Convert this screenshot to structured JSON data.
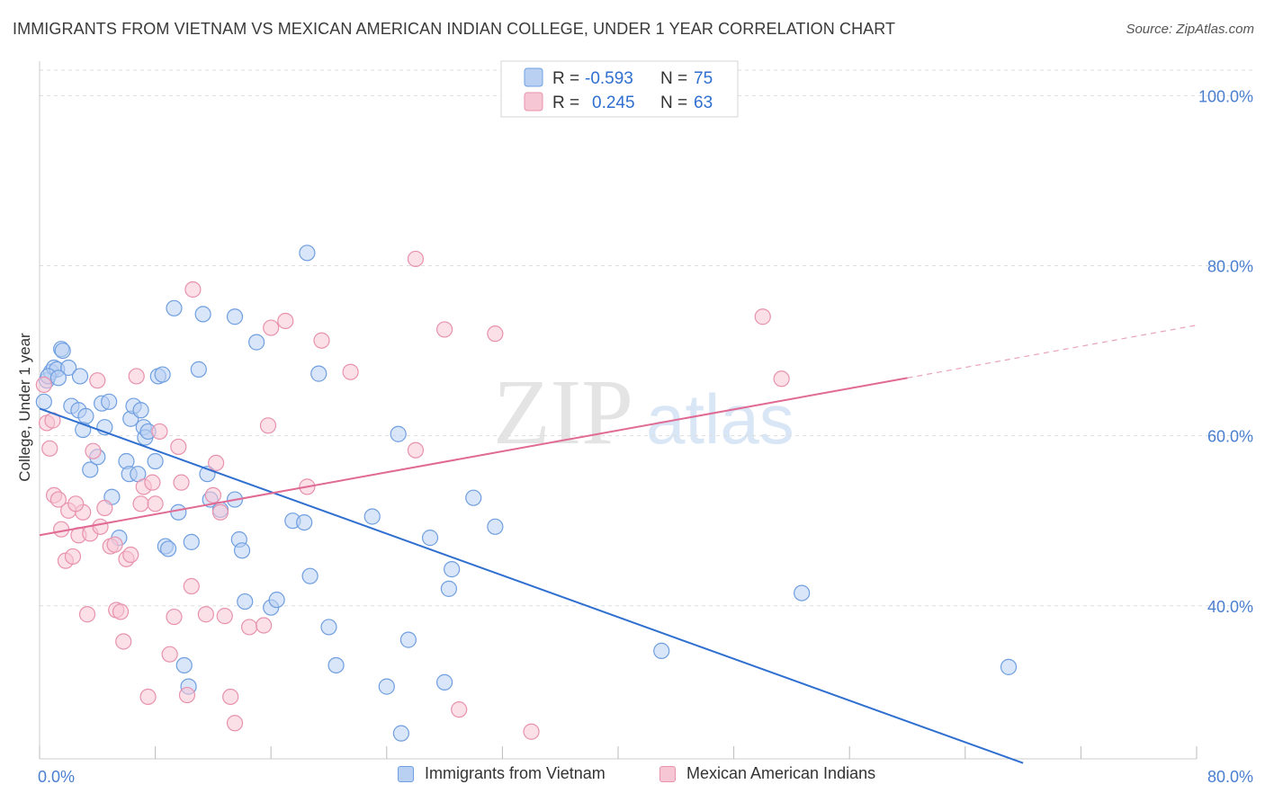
{
  "header": {
    "title": "IMMIGRANTS FROM VIETNAM VS MEXICAN AMERICAN INDIAN COLLEGE, UNDER 1 YEAR CORRELATION CHART",
    "source": "Source: ZipAtlas.com"
  },
  "watermark": {
    "zip": "ZIP",
    "atlas": "atlas"
  },
  "chart_data": {
    "type": "scatter",
    "title": "IMMIGRANTS FROM VIETNAM VS MEXICAN AMERICAN INDIAN COLLEGE, UNDER 1 YEAR CORRELATION CHART",
    "xlabel": "",
    "ylabel": "College, Under 1 year",
    "xlim": [
      0,
      80
    ],
    "ylim": [
      22,
      103
    ],
    "x_tick_labels": [
      "0.0%",
      "80.0%"
    ],
    "y_ticks": [
      40,
      60,
      80,
      100
    ],
    "y_tick_labels": [
      "40.0%",
      "60.0%",
      "80.0%",
      "100.0%"
    ],
    "grid": true,
    "legend_position": "top-center",
    "legend": [
      {
        "r_label": "R =",
        "r_value": "-0.593",
        "n_label": "N =",
        "n_value": "75"
      },
      {
        "r_label": "R =",
        "r_value": "0.245",
        "n_label": "N =",
        "n_value": "63"
      }
    ],
    "series": [
      {
        "name": "Immigrants from Vietnam",
        "color": "#6f9fe0",
        "fill": "#b9d0f3",
        "trend": {
          "x": [
            0,
            68
          ],
          "y": [
            63.2,
            21.5
          ]
        },
        "points": [
          [
            0.3,
            64.0
          ],
          [
            0.5,
            66.5
          ],
          [
            0.8,
            67.5
          ],
          [
            1.0,
            68.0
          ],
          [
            1.2,
            67.8
          ],
          [
            1.5,
            70.2
          ],
          [
            1.6,
            70.0
          ],
          [
            2.0,
            68.0
          ],
          [
            2.2,
            63.5
          ],
          [
            2.8,
            67.0
          ],
          [
            2.7,
            63.0
          ],
          [
            3.0,
            60.7
          ],
          [
            3.2,
            62.3
          ],
          [
            3.5,
            56.0
          ],
          [
            4.0,
            57.5
          ],
          [
            4.3,
            63.8
          ],
          [
            4.5,
            61.0
          ],
          [
            4.8,
            64.0
          ],
          [
            5.0,
            52.8
          ],
          [
            5.5,
            48.0
          ],
          [
            6.0,
            57.0
          ],
          [
            6.2,
            55.5
          ],
          [
            6.3,
            62.0
          ],
          [
            6.5,
            63.5
          ],
          [
            6.8,
            55.5
          ],
          [
            7.0,
            63.0
          ],
          [
            7.2,
            61.0
          ],
          [
            7.3,
            59.8
          ],
          [
            7.5,
            60.5
          ],
          [
            8.0,
            57.0
          ],
          [
            8.2,
            67.0
          ],
          [
            8.5,
            67.2
          ],
          [
            8.7,
            47.0
          ],
          [
            8.9,
            46.7
          ],
          [
            9.3,
            75.0
          ],
          [
            9.6,
            51.0
          ],
          [
            10.0,
            33.0
          ],
          [
            10.3,
            30.5
          ],
          [
            10.5,
            47.5
          ],
          [
            11.0,
            67.8
          ],
          [
            11.3,
            74.3
          ],
          [
            11.6,
            55.5
          ],
          [
            11.8,
            52.5
          ],
          [
            12.5,
            51.3
          ],
          [
            13.5,
            74.0
          ],
          [
            13.5,
            52.5
          ],
          [
            13.8,
            47.8
          ],
          [
            14.0,
            46.5
          ],
          [
            14.2,
            40.5
          ],
          [
            15.0,
            71.0
          ],
          [
            16.0,
            39.8
          ],
          [
            16.4,
            40.7
          ],
          [
            17.5,
            50.0
          ],
          [
            18.3,
            49.8
          ],
          [
            18.5,
            81.5
          ],
          [
            18.7,
            43.5
          ],
          [
            19.3,
            67.3
          ],
          [
            20.0,
            37.5
          ],
          [
            20.5,
            33.0
          ],
          [
            23.0,
            50.5
          ],
          [
            24.0,
            30.5
          ],
          [
            24.8,
            60.2
          ],
          [
            25.0,
            25.0
          ],
          [
            25.5,
            36.0
          ],
          [
            27.0,
            48.0
          ],
          [
            28.0,
            31.0
          ],
          [
            28.3,
            42.0
          ],
          [
            28.5,
            44.3
          ],
          [
            30.0,
            52.7
          ],
          [
            31.5,
            49.3
          ],
          [
            43.0,
            34.7
          ],
          [
            52.7,
            41.5
          ],
          [
            67.0,
            32.8
          ],
          [
            0.6,
            67.0
          ],
          [
            1.3,
            66.8
          ]
        ]
      },
      {
        "name": "Mexican American Indians",
        "color": "#e892ad",
        "fill": "#f7c6d5",
        "trend": {
          "x": [
            0,
            60
          ],
          "y": [
            48.3,
            66.8
          ]
        },
        "trend_dashed": {
          "x": [
            60,
            80
          ],
          "y": [
            66.8,
            73.0
          ]
        },
        "points": [
          [
            0.3,
            66.0
          ],
          [
            0.5,
            61.5
          ],
          [
            0.7,
            58.5
          ],
          [
            1.0,
            53.0
          ],
          [
            1.3,
            52.5
          ],
          [
            1.5,
            49.0
          ],
          [
            1.8,
            45.3
          ],
          [
            2.0,
            51.2
          ],
          [
            2.3,
            45.8
          ],
          [
            2.7,
            48.3
          ],
          [
            3.0,
            51.0
          ],
          [
            3.3,
            39.0
          ],
          [
            3.5,
            48.5
          ],
          [
            3.7,
            58.2
          ],
          [
            4.0,
            66.5
          ],
          [
            4.2,
            49.3
          ],
          [
            4.5,
            51.5
          ],
          [
            4.9,
            47.0
          ],
          [
            5.2,
            47.2
          ],
          [
            5.3,
            39.5
          ],
          [
            5.6,
            39.3
          ],
          [
            5.8,
            35.8
          ],
          [
            6.0,
            45.5
          ],
          [
            6.3,
            46.0
          ],
          [
            6.7,
            67.0
          ],
          [
            7.0,
            52.0
          ],
          [
            7.2,
            54.0
          ],
          [
            7.5,
            29.3
          ],
          [
            7.8,
            54.5
          ],
          [
            8.0,
            52.0
          ],
          [
            8.3,
            60.5
          ],
          [
            9.0,
            34.3
          ],
          [
            9.3,
            38.7
          ],
          [
            9.6,
            58.7
          ],
          [
            9.8,
            54.5
          ],
          [
            10.2,
            29.5
          ],
          [
            10.5,
            42.3
          ],
          [
            10.6,
            77.2
          ],
          [
            11.5,
            39.0
          ],
          [
            12.0,
            53.0
          ],
          [
            12.2,
            56.8
          ],
          [
            12.5,
            51.0
          ],
          [
            12.8,
            38.8
          ],
          [
            13.2,
            29.3
          ],
          [
            13.5,
            26.2
          ],
          [
            14.5,
            37.5
          ],
          [
            15.5,
            37.7
          ],
          [
            15.8,
            61.2
          ],
          [
            16.0,
            72.7
          ],
          [
            17.0,
            73.5
          ],
          [
            18.5,
            54.0
          ],
          [
            19.5,
            71.2
          ],
          [
            21.5,
            67.5
          ],
          [
            26.0,
            80.8
          ],
          [
            26.0,
            58.3
          ],
          [
            28.0,
            72.5
          ],
          [
            29.0,
            27.8
          ],
          [
            31.5,
            72.0
          ],
          [
            34.0,
            25.2
          ],
          [
            50.0,
            74.0
          ],
          [
            51.3,
            66.7
          ],
          [
            0.9,
            61.8
          ],
          [
            2.5,
            52.0
          ]
        ]
      }
    ]
  },
  "bottom_legend": {
    "items": [
      {
        "label": "Immigrants from Vietnam"
      },
      {
        "label": "Mexican American Indians"
      }
    ]
  }
}
